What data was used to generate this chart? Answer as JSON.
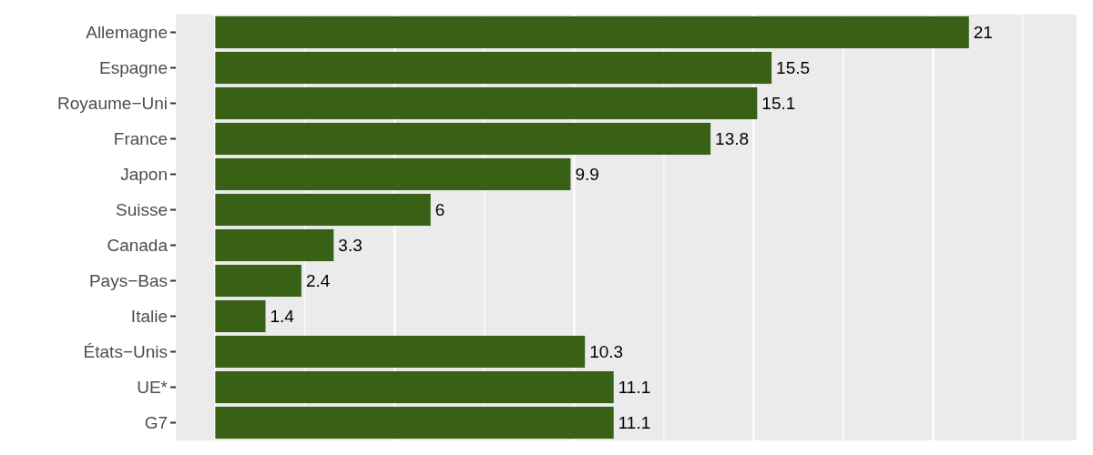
{
  "chart_data": {
    "type": "bar",
    "orientation": "horizontal",
    "categories": [
      "Allemagne",
      "Espagne",
      "Royaume−Uni",
      "France",
      "Japon",
      "Suisse",
      "Canada",
      "Pays−Bas",
      "Italie",
      "États−Unis",
      "UE*",
      "G7"
    ],
    "values": [
      21,
      15.5,
      15.1,
      13.8,
      9.9,
      6,
      3.3,
      2.4,
      1.4,
      10.3,
      11.1,
      11.1
    ],
    "color": "#386116",
    "data_labels": true,
    "grid": "x",
    "tick_labels": "y",
    "xlim": [
      -1.1,
      24
    ],
    "xticks": [
      {
        "value": 0,
        "label": null
      },
      {
        "value": 2.5,
        "label": null
      },
      {
        "value": 5,
        "label": null
      },
      {
        "value": 7.5,
        "label": null
      },
      {
        "value": 10,
        "label": null
      },
      {
        "value": 12.5,
        "label": null
      },
      {
        "value": 15,
        "label": null
      },
      {
        "value": 17.5,
        "label": null
      },
      {
        "value": 20,
        "label": null
      },
      {
        "value": 22.5,
        "label": null
      }
    ]
  }
}
